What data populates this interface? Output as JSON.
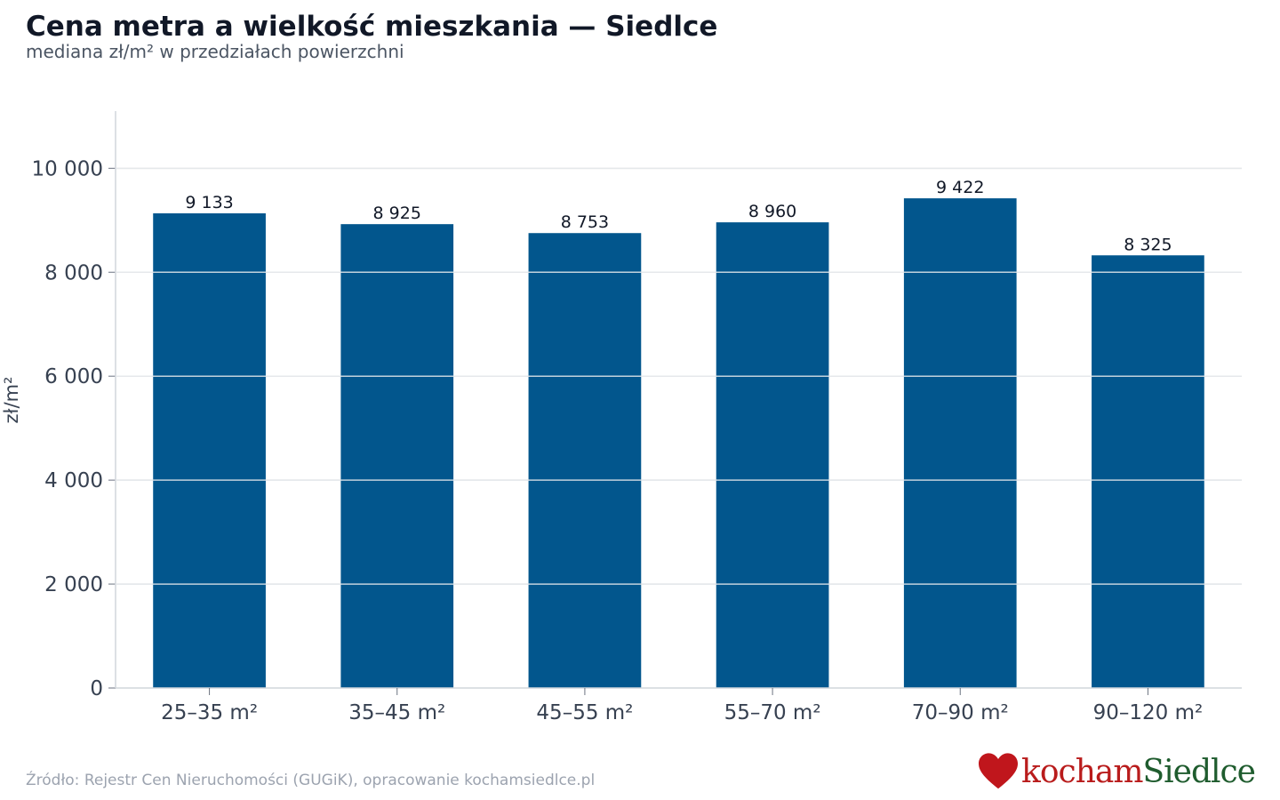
{
  "title": "Cena metra a wielkość mieszkania — Siedlce",
  "subtitle": "mediana zł/m² w przedziałach powierzchni",
  "source": "Źródło: Rejestr Cen Nieruchomości (GUGiK), opracowanie kochamsiedlce.pl",
  "logo": {
    "part1": "kocham",
    "part2": "Siedlce",
    "icon": "heart-icon",
    "colors": {
      "heart": "#c0161c",
      "part1": "#b91c1c",
      "part2": "#1f5c2e"
    }
  },
  "colors": {
    "bar": "#02568d",
    "grid": "#e5e7eb",
    "axis_text": "#374151",
    "label_text": "#111827"
  },
  "chart_data": {
    "type": "bar",
    "title": "Cena metra a wielkość mieszkania — Siedlce",
    "subtitle": "mediana zł/m² w przedziałach powierzchni",
    "xlabel": "",
    "ylabel": "zł/m²",
    "categories": [
      "25–35 m²",
      "35–45 m²",
      "45–55 m²",
      "55–70 m²",
      "70–90 m²",
      "90–120 m²"
    ],
    "values": [
      9133,
      8925,
      8753,
      8960,
      9422,
      8325
    ],
    "value_labels": [
      "9 133",
      "8 925",
      "8 753",
      "8 960",
      "9 422",
      "8 325"
    ],
    "yticks": [
      0,
      2000,
      4000,
      6000,
      8000,
      10000
    ],
    "ytick_labels": [
      "0",
      "2 000",
      "4 000",
      "6 000",
      "8 000",
      "10 000"
    ],
    "ylim": [
      0,
      11100
    ],
    "grid": true,
    "legend": "none"
  }
}
